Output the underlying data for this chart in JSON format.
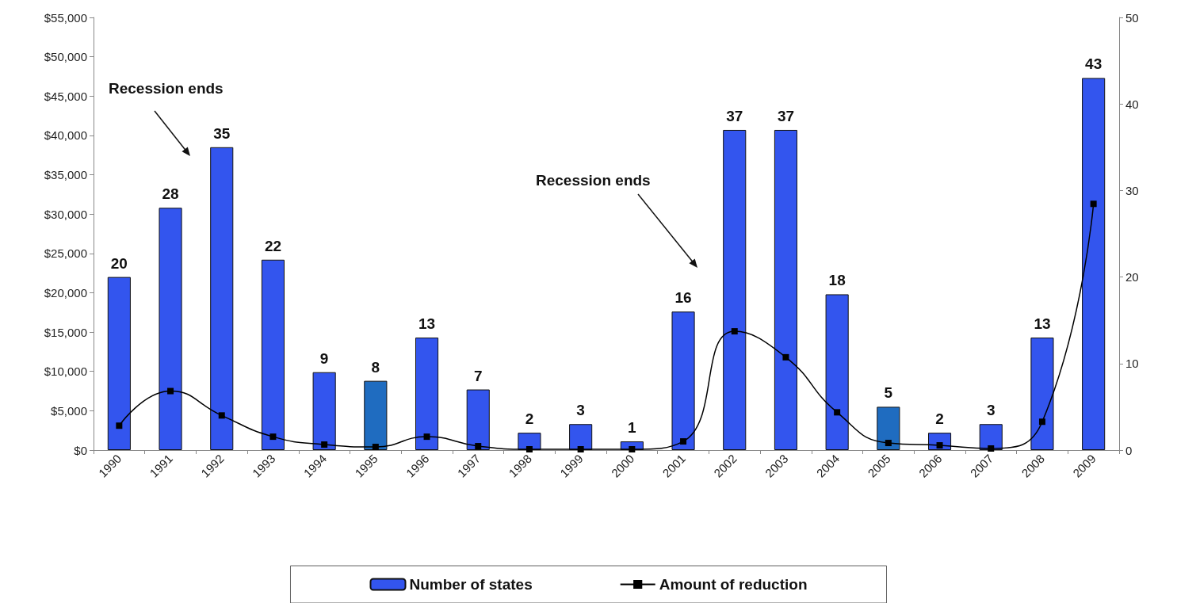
{
  "chart_data": {
    "type": "bar",
    "categories": [
      "1990",
      "1991",
      "1992",
      "1993",
      "1994",
      "1995",
      "1996",
      "1997",
      "1998",
      "1999",
      "2000",
      "2001",
      "2002",
      "2003",
      "2004",
      "2005",
      "2006",
      "2007",
      "2008",
      "2009"
    ],
    "series": [
      {
        "name": "Number of states",
        "axis": "y2",
        "value_labels": [
          "20",
          "28",
          "35",
          "22",
          "9",
          "8",
          "13",
          "7",
          "2",
          "3",
          "1",
          "16",
          "37",
          "37",
          "18",
          "5",
          "2",
          "3",
          "13",
          "43"
        ],
        "color": "#3355ee",
        "colors": [
          "#3355ee",
          "#3355ee",
          "#3355ee",
          "#3355ee",
          "#3355ee",
          "#1f6cc0",
          "#3355ee",
          "#3355ee",
          "#3355ee",
          "#3355ee",
          "#3355ee",
          "#3355ee",
          "#3355ee",
          "#3355ee",
          "#3355ee",
          "#1f6cc0",
          "#3355ee",
          "#3355ee",
          "#3355ee",
          "#3355ee"
        ],
        "values": [
          20,
          28,
          35,
          22,
          9,
          8,
          13,
          7,
          2,
          3,
          1,
          16,
          37,
          37,
          18,
          5,
          2,
          3,
          13,
          43
        ]
      },
      {
        "name": "Amount of reduction",
        "type": "line",
        "color": "#000000",
        "marker": "square",
        "values": [
          3100,
          7500,
          4400,
          1700,
          700,
          400,
          1700,
          500,
          100,
          100,
          100,
          1100,
          15100,
          11800,
          4800,
          900,
          600,
          200,
          3600,
          31300
        ]
      }
    ],
    "ylim": [
      0,
      55000
    ],
    "yticks": [
      {
        "value": 0,
        "label": "$0"
      },
      {
        "value": 5000,
        "label": "$5,000"
      },
      {
        "value": 10000,
        "label": "$10,000"
      },
      {
        "value": 15000,
        "label": "$15,000"
      },
      {
        "value": 20000,
        "label": "$20,000"
      },
      {
        "value": 25000,
        "label": "$25,000"
      },
      {
        "value": 30000,
        "label": "$30,000"
      },
      {
        "value": 35000,
        "label": "$35,000"
      },
      {
        "value": 40000,
        "label": "$40,000"
      },
      {
        "value": 45000,
        "label": "$45,000"
      },
      {
        "value": 50000,
        "label": "$50,000"
      },
      {
        "value": 55000,
        "label": "$55,000"
      }
    ],
    "y2lim": [
      0,
      50
    ],
    "y2ticks": [
      0,
      10,
      20,
      30,
      40,
      50
    ],
    "annotations": [
      "Recession ends",
      "Recession ends"
    ],
    "grid": false,
    "legend": "bottom"
  }
}
